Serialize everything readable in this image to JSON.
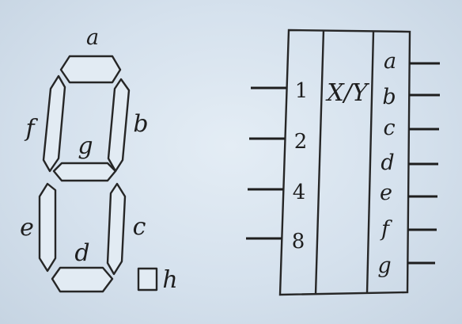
{
  "seven_segment": {
    "labels": {
      "a": "a",
      "b": "b",
      "c": "c",
      "d": "d",
      "e": "e",
      "f": "f",
      "g": "g",
      "h": "h"
    }
  },
  "decoder": {
    "title": "X/Y",
    "inputs": [
      "1",
      "2",
      "4",
      "8"
    ],
    "outputs": [
      "a",
      "b",
      "c",
      "d",
      "e",
      "f",
      "g"
    ]
  }
}
